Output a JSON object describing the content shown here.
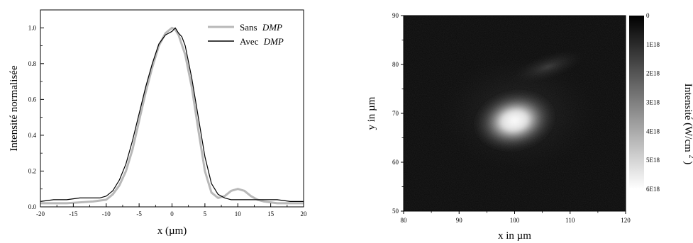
{
  "chart_data": [
    {
      "type": "line",
      "xlabel": "x (µm)",
      "ylabel": "Intensité normalisée",
      "xlim": [
        -20,
        20
      ],
      "ylim": [
        0.0,
        1.1
      ],
      "xticks": [
        "-20",
        "-15",
        "-10",
        "-5",
        "0",
        "5",
        "10",
        "15",
        "20"
      ],
      "yticks": [
        "0.0",
        "0.2",
        "0.4",
        "0.6",
        "0.8",
        "1.0"
      ],
      "legend_position": "top-right",
      "series": [
        {
          "name": "Sans DMP",
          "name_plain": "Sans",
          "name_italic": "DMP",
          "color": "#b8b8b8",
          "x": [
            -20,
            -16,
            -12,
            -10,
            -9,
            -8,
            -7,
            -6,
            -5,
            -4,
            -3,
            -2,
            -1,
            0,
            0.5,
            1,
            2,
            3,
            4,
            5,
            6,
            7,
            8,
            9,
            10,
            11,
            12,
            13,
            14,
            16,
            20
          ],
          "y": [
            0.02,
            0.02,
            0.03,
            0.04,
            0.07,
            0.12,
            0.2,
            0.32,
            0.48,
            0.64,
            0.78,
            0.9,
            0.97,
            1.0,
            0.99,
            0.96,
            0.85,
            0.67,
            0.43,
            0.2,
            0.08,
            0.05,
            0.06,
            0.09,
            0.1,
            0.09,
            0.06,
            0.04,
            0.03,
            0.02,
            0.02
          ]
        },
        {
          "name": "Avec DMP",
          "name_plain": "Avec",
          "name_italic": "DMP",
          "color": "#000000",
          "x": [
            -20,
            -18,
            -16,
            -14,
            -12,
            -11,
            -10,
            -9,
            -8,
            -7,
            -6,
            -5,
            -4,
            -3,
            -2,
            -1,
            0,
            0.5,
            1,
            1.5,
            2,
            3,
            4,
            5,
            6,
            7,
            8,
            9,
            10,
            12,
            14,
            16,
            18,
            20
          ],
          "y": [
            0.03,
            0.04,
            0.04,
            0.05,
            0.05,
            0.05,
            0.06,
            0.09,
            0.15,
            0.24,
            0.37,
            0.52,
            0.67,
            0.8,
            0.91,
            0.96,
            0.98,
            1.0,
            0.97,
            0.95,
            0.9,
            0.72,
            0.5,
            0.28,
            0.13,
            0.07,
            0.05,
            0.04,
            0.04,
            0.04,
            0.04,
            0.04,
            0.03,
            0.03
          ]
        }
      ]
    },
    {
      "type": "heatmap",
      "xlabel": "x in µm",
      "ylabel": "y in µm",
      "xlim": [
        80,
        120
      ],
      "ylim": [
        50,
        90
      ],
      "xticks": [
        "80",
        "90",
        "100",
        "110",
        "120"
      ],
      "yticks": [
        "50",
        "60",
        "70",
        "80",
        "90"
      ],
      "hotspot": {
        "x": 100,
        "y": 68.5
      },
      "secondary_lobe": {
        "x": 106,
        "y": 79.5
      },
      "colorbar": {
        "label_text": "Intensité (W/cm",
        "label_sup": "2",
        "label_close": ")",
        "ticks": [
          "0",
          "1E18",
          "2E18",
          "3E18",
          "4E18",
          "5E18",
          "6E18"
        ],
        "range": [
          0,
          6e+18
        ],
        "colors": [
          "#000000",
          "#ffffff"
        ]
      }
    }
  ]
}
